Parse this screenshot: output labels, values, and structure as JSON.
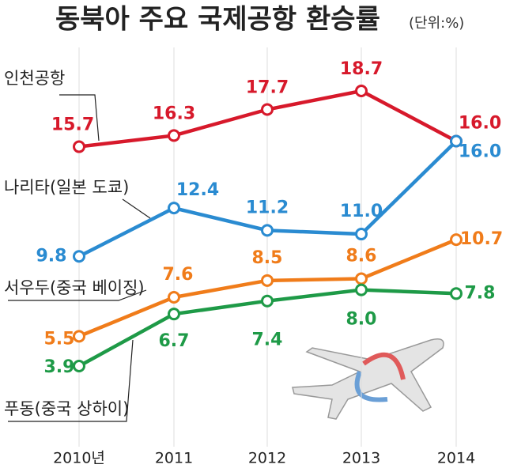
{
  "chart_data": {
    "type": "line",
    "title": "동북아 주요 국제공항 환승률",
    "subtitle": "(단위:%)",
    "categories": [
      "2010년",
      "2011",
      "2012",
      "2013",
      "2014"
    ],
    "series": [
      {
        "name": "인천공항",
        "color": "#d7192b",
        "values": [
          15.7,
          16.3,
          17.7,
          18.7,
          16.0
        ],
        "value_labels": [
          "15.7",
          "16.3",
          "17.7",
          "18.7",
          "16.0"
        ]
      },
      {
        "name": "나리타(일본 도쿄)",
        "color": "#2a8bd1",
        "values": [
          9.8,
          12.4,
          11.2,
          11.0,
          16.0
        ],
        "value_labels": [
          "9.8",
          "12.4",
          "11.2",
          "11.0",
          "16.0"
        ]
      },
      {
        "name": "서우두(중국 베이징)",
        "color": "#f07c1a",
        "values": [
          5.5,
          7.6,
          8.5,
          8.6,
          10.7
        ],
        "value_labels": [
          "5.5",
          "7.6",
          "8.5",
          "8.6",
          "10.7"
        ]
      },
      {
        "name": "푸동(중국 상하이)",
        "color": "#1e9a47",
        "values": [
          3.9,
          6.7,
          7.4,
          8.0,
          7.8
        ],
        "value_labels": [
          "3.9",
          "6.7",
          "7.4",
          "8.0",
          "7.8"
        ]
      }
    ]
  }
}
